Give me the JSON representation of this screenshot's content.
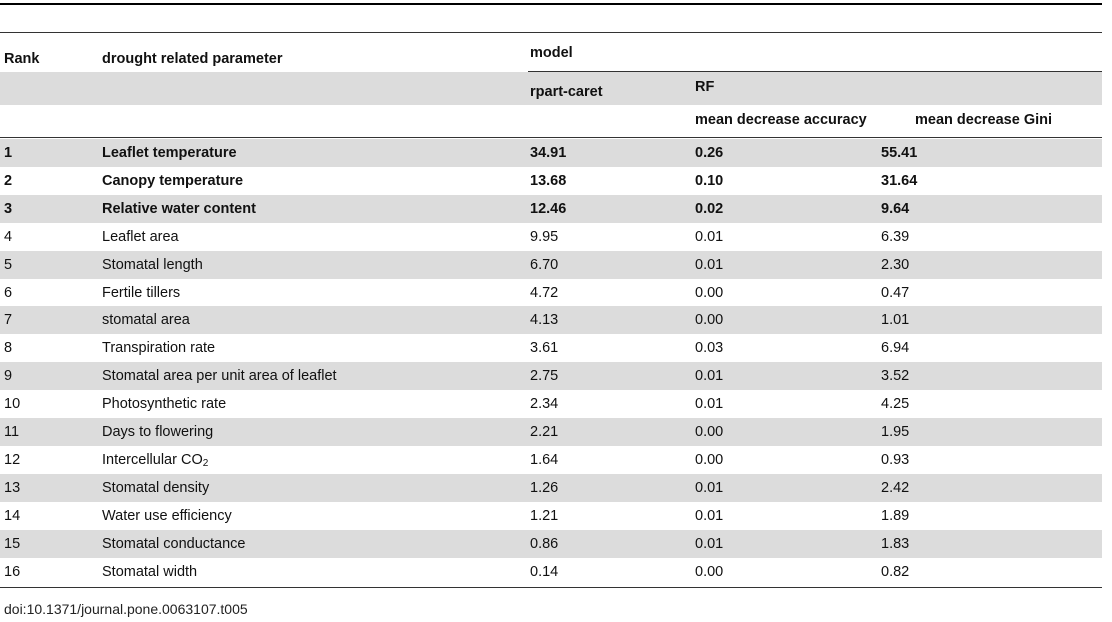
{
  "header": {
    "rank": "Rank",
    "parameter": "drought related parameter",
    "model": "model",
    "rpart": "rpart-caret",
    "rf": "RF",
    "mda": "mean decrease accuracy",
    "mdg": "mean decrease Gini"
  },
  "rows": [
    {
      "rank": "1",
      "param": "Leaflet temperature",
      "rpart": "34.91",
      "mda": "0.26",
      "mdg": "55.41",
      "bold": true,
      "shaded": true
    },
    {
      "rank": "2",
      "param": "Canopy temperature",
      "rpart": "13.68",
      "mda": "0.10",
      "mdg": "31.64",
      "bold": true,
      "shaded": false
    },
    {
      "rank": "3",
      "param": "Relative water content",
      "rpart": "12.46",
      "mda": "0.02",
      "mdg": "9.64",
      "bold": true,
      "shaded": true
    },
    {
      "rank": "4",
      "param": "Leaflet area",
      "rpart": "9.95",
      "mda": "0.01",
      "mdg": "6.39",
      "bold": false,
      "shaded": false
    },
    {
      "rank": "5",
      "param": "Stomatal length",
      "rpart": "6.70",
      "mda": "0.01",
      "mdg": "2.30",
      "bold": false,
      "shaded": true
    },
    {
      "rank": "6",
      "param": "Fertile tillers",
      "rpart": "4.72",
      "mda": "0.00",
      "mdg": "0.47",
      "bold": false,
      "shaded": false
    },
    {
      "rank": "7",
      "param": "stomatal area",
      "rpart": "4.13",
      "mda": "0.00",
      "mdg": "1.01",
      "bold": false,
      "shaded": true
    },
    {
      "rank": "8",
      "param": "Transpiration rate",
      "rpart": "3.61",
      "mda": "0.03",
      "mdg": "6.94",
      "bold": false,
      "shaded": false
    },
    {
      "rank": "9",
      "param": "Stomatal area per unit area of leaflet",
      "rpart": "2.75",
      "mda": "0.01",
      "mdg": "3.52",
      "bold": false,
      "shaded": true
    },
    {
      "rank": "10",
      "param": "Photosynthetic rate",
      "rpart": "2.34",
      "mda": "0.01",
      "mdg": "4.25",
      "bold": false,
      "shaded": false
    },
    {
      "rank": "11",
      "param": "Days to flowering",
      "rpart": "2.21",
      "mda": "0.00",
      "mdg": "1.95",
      "bold": false,
      "shaded": true
    },
    {
      "rank": "12",
      "param": "Intercellular CO",
      "param_sub": "2",
      "rpart": "1.64",
      "mda": "0.00",
      "mdg": "0.93",
      "bold": false,
      "shaded": false
    },
    {
      "rank": "13",
      "param": "Stomatal density",
      "rpart": "1.26",
      "mda": "0.01",
      "mdg": "2.42",
      "bold": false,
      "shaded": true
    },
    {
      "rank": "14",
      "param": "Water use efficiency",
      "rpart": "1.21",
      "mda": "0.01",
      "mdg": "1.89",
      "bold": false,
      "shaded": false
    },
    {
      "rank": "15",
      "param": "Stomatal conductance",
      "rpart": "0.86",
      "mda": "0.01",
      "mdg": "1.83",
      "bold": false,
      "shaded": true
    },
    {
      "rank": "16",
      "param": "Stomatal width",
      "rpart": "0.14",
      "mda": "0.00",
      "mdg": "0.82",
      "bold": false,
      "shaded": false
    }
  ],
  "footer": {
    "doi": "doi:10.1371/journal.pone.0063107.t005"
  }
}
